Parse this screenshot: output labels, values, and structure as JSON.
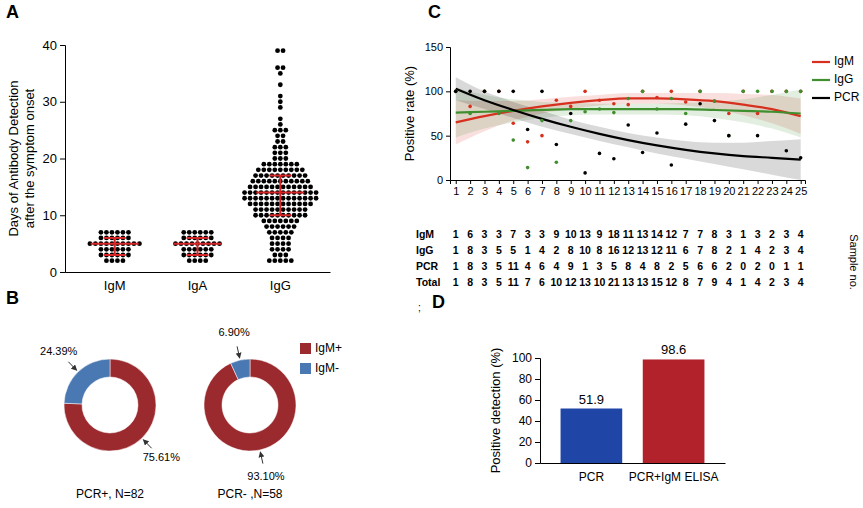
{
  "chart_data": [
    {
      "panel": "A",
      "type": "strip",
      "categories": [
        "IgM",
        "IgA",
        "IgG"
      ],
      "values": [
        [
          2,
          2,
          2,
          2,
          3,
          3,
          3,
          3,
          3,
          3,
          4,
          4,
          4,
          4,
          4,
          4,
          5,
          5,
          5,
          5,
          5,
          5,
          5,
          5,
          5,
          5,
          6,
          6,
          6,
          6,
          6,
          6,
          7,
          7,
          7,
          7,
          7,
          7
        ],
        [
          2,
          2,
          2,
          2,
          3,
          3,
          3,
          3,
          3,
          3,
          4,
          4,
          4,
          4,
          4,
          4,
          5,
          5,
          5,
          5,
          5,
          5,
          5,
          5,
          5,
          6,
          6,
          6,
          6,
          6,
          6,
          7,
          7,
          7,
          7,
          7,
          7
        ],
        [
          2,
          2,
          2,
          2,
          2,
          3,
          3,
          3,
          4,
          4,
          4,
          4,
          5,
          5,
          5,
          5,
          6,
          6,
          6,
          6,
          7,
          7,
          7,
          7,
          7,
          8,
          8,
          8,
          8,
          8,
          8,
          9,
          9,
          9,
          9,
          9,
          9,
          9,
          10,
          10,
          10,
          10,
          10,
          10,
          10,
          10,
          10,
          10,
          11,
          11,
          11,
          11,
          11,
          11,
          11,
          11,
          11,
          11,
          12,
          12,
          12,
          12,
          12,
          12,
          12,
          12,
          12,
          12,
          12,
          12,
          13,
          13,
          13,
          13,
          13,
          13,
          13,
          13,
          13,
          13,
          13,
          13,
          13,
          13,
          14,
          14,
          14,
          14,
          14,
          14,
          14,
          14,
          14,
          14,
          14,
          14,
          14,
          14,
          15,
          15,
          15,
          15,
          15,
          15,
          15,
          15,
          15,
          15,
          15,
          15,
          16,
          16,
          16,
          16,
          16,
          16,
          16,
          16,
          16,
          16,
          16,
          17,
          17,
          17,
          17,
          17,
          17,
          17,
          17,
          17,
          17,
          18,
          18,
          18,
          18,
          18,
          18,
          18,
          18,
          18,
          19,
          19,
          19,
          19,
          19,
          19,
          19,
          20,
          20,
          20,
          21,
          21,
          21,
          22,
          22,
          22,
          23,
          23,
          24,
          24,
          25,
          25,
          25,
          26,
          27,
          29,
          30,
          31,
          33,
          35,
          36,
          36,
          39,
          39
        ]
      ],
      "medians": [
        5,
        5,
        14
      ],
      "iqr": [
        [
          3,
          6
        ],
        [
          3,
          6
        ],
        [
          10,
          17
        ]
      ],
      "color": "#000000",
      "ylabel": [
        "Days of Antibody Detection",
        "after the symptom onset"
      ],
      "ylim": [
        0,
        40
      ],
      "yticks": [
        0,
        10,
        20,
        30,
        40
      ]
    },
    {
      "panel": "B",
      "type": "donut",
      "categories": [
        "IgM+",
        "IgM-"
      ],
      "colors": [
        "#9b2a2f",
        "#4a78b3"
      ],
      "legend": "right",
      "pies": [
        {
          "title": "PCR+, N=82",
          "values": [
            75.61,
            24.39
          ],
          "value_labels": [
            "75.61%",
            "24.39%"
          ]
        },
        {
          "title": "PCR- ,N=58",
          "values": [
            93.1,
            6.9
          ],
          "value_labels": [
            "93.10%",
            "6.90%"
          ]
        }
      ]
    },
    {
      "panel": "C",
      "type": "scatter",
      "ylabel": "Positive rate (%)",
      "x": [
        1,
        2,
        3,
        4,
        5,
        6,
        7,
        8,
        9,
        10,
        11,
        12,
        13,
        14,
        15,
        16,
        17,
        18,
        19,
        20,
        21,
        22,
        23,
        24,
        25
      ],
      "xlim": [
        0.6,
        25.3
      ],
      "xticks": [
        1,
        2,
        3,
        4,
        5,
        6,
        7,
        8,
        9,
        10,
        11,
        12,
        13,
        14,
        15,
        16,
        17,
        18,
        19,
        20,
        21,
        22,
        23,
        24,
        25
      ],
      "ylim": [
        0,
        150
      ],
      "yticks": [
        0,
        50,
        100,
        150
      ],
      "legend": "right",
      "series": [
        {
          "name": "IgM",
          "color": "#d7301f",
          "values": [
            100,
            83,
            100,
            100,
            64,
            43,
            50,
            90,
            83,
            100,
            90,
            86,
            85,
            100,
            93,
            100,
            88,
            100,
            89,
            75,
            100,
            75,
            100,
            100,
            100
          ],
          "fit": {
            "x": [
              1,
              3,
              5,
              7,
              9,
              11,
              13,
              15,
              17,
              19,
              21,
              23,
              25
            ],
            "values": [
              65,
              72,
              78,
              83,
              87,
              90,
              92,
              92,
              91,
              89,
              85,
              80,
              72
            ],
            "lower": [
              40,
              55,
              67,
              75,
              80,
              84,
              86,
              86,
              84,
              80,
              73,
              64,
              52
            ],
            "upper": [
              90,
              89,
              89,
              91,
              94,
              96,
              98,
              98,
              98,
              98,
              97,
              96,
              92
            ]
          }
        },
        {
          "name": "IgG",
          "color": "#3f8f2f",
          "values": [
            100,
            75,
            100,
            75,
            45,
            14,
            67,
            20,
            67,
            77,
            80,
            76,
            92,
            100,
            80,
            92,
            75,
            100,
            89,
            50,
            100,
            100,
            100,
            100,
            100
          ],
          "fit": {
            "x": [
              1,
              3,
              5,
              7,
              9,
              11,
              13,
              15,
              17,
              19,
              21,
              23,
              25
            ],
            "values": [
              76,
              77,
              78,
              79,
              80,
              80,
              80,
              80,
              80,
              79,
              78,
              77,
              75
            ],
            "lower": [
              48,
              58,
              65,
              70,
              73,
              74,
              74,
              74,
              73,
              70,
              65,
              58,
              48
            ],
            "upper": [
              104,
              96,
              91,
              88,
              87,
              86,
              86,
              86,
              87,
              88,
              91,
              96,
              102
            ]
          }
        },
        {
          "name": "PCR",
          "color": "#000000",
          "values": [
            100,
            100,
            100,
            100,
            100,
            57,
            100,
            40,
            75,
            8,
            30,
            24,
            62,
            31,
            53,
            17,
            63,
            86,
            67,
            50,
            null,
            50,
            null,
            33,
            25
          ],
          "fit": {
            "x": [
              1,
              3,
              5,
              7,
              9,
              11,
              13,
              15,
              17,
              19,
              21,
              23,
              25
            ],
            "values": [
              103,
              90,
              79,
              69,
              60,
              52,
              45,
              39,
              34,
              30,
              27,
              25,
              23
            ],
            "lower": [
              90,
              80,
              70,
              60,
              52,
              44,
              37,
              30,
              24,
              18,
              12,
              6,
              0
            ],
            "upper": [
              116,
              100,
              88,
              78,
              68,
              60,
              53,
              48,
              44,
              42,
              42,
              44,
              46
            ]
          }
        }
      ],
      "table": {
        "title": "Sample no.",
        "rows": [
          "IgM",
          "IgG",
          "PCR",
          "Total"
        ],
        "values": [
          [
            1,
            6,
            3,
            3,
            7,
            3,
            3,
            9,
            10,
            13,
            9,
            18,
            11,
            13,
            14,
            12,
            7,
            7,
            8,
            3,
            1,
            3,
            2,
            3,
            4
          ],
          [
            1,
            8,
            3,
            5,
            5,
            1,
            4,
            2,
            8,
            10,
            8,
            16,
            12,
            13,
            12,
            11,
            6,
            7,
            8,
            2,
            1,
            4,
            2,
            3,
            4
          ],
          [
            1,
            8,
            3,
            5,
            11,
            4,
            6,
            4,
            9,
            1,
            3,
            5,
            8,
            4,
            8,
            2,
            5,
            6,
            6,
            2,
            0,
            2,
            0,
            1,
            1
          ],
          [
            1,
            8,
            3,
            5,
            11,
            7,
            6,
            10,
            12,
            13,
            10,
            21,
            13,
            13,
            15,
            12,
            8,
            7,
            9,
            4,
            1,
            4,
            2,
            3,
            4
          ]
        ]
      }
    },
    {
      "panel": "D",
      "type": "bar",
      "categories": [
        "PCR",
        "PCR+IgM ELISA"
      ],
      "values": [
        51.9,
        98.6
      ],
      "colors": [
        "#1f45a6",
        "#b1222b"
      ],
      "data_labels": true,
      "ylabel": "Positive detection (%)",
      "ylim": [
        0,
        100
      ],
      "yticks": [
        0,
        20,
        40,
        60,
        80,
        100
      ],
      "annotation": ";"
    }
  ]
}
